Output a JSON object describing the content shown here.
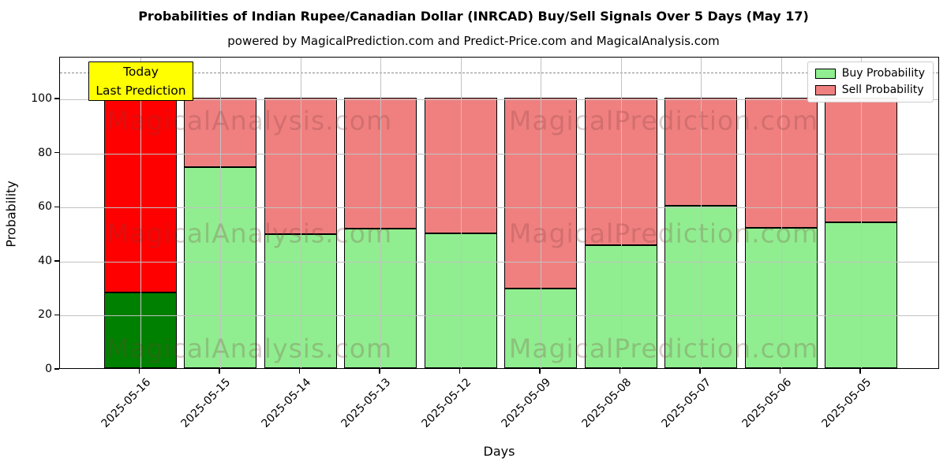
{
  "title": "Probabilities of Indian Rupee/Canadian Dollar (INRCAD) Buy/Sell Signals Over 5 Days (May 17)",
  "subtitle": "powered by MagicalPrediction.com and Predict-Price.com and MagicalAnalysis.com",
  "axes": {
    "xlabel": "Days",
    "ylabel": "Probability",
    "yticks": [
      0,
      20,
      40,
      60,
      80,
      100
    ],
    "ylim": [
      0,
      115.5
    ],
    "grid": true,
    "dashed_line_y": 110
  },
  "annotation": {
    "line1": "Today",
    "line2": "Last Prediction",
    "bg_color": "#ffff00"
  },
  "legend": {
    "position": "top-right",
    "items": [
      {
        "label": "Buy Probability",
        "color": "#90ee90"
      },
      {
        "label": "Sell Probability",
        "color": "#f08080"
      }
    ]
  },
  "watermarks": {
    "left_text": "MagicalAnalysis.com",
    "right_text": "MagicalPrediction.com"
  },
  "chart_data": {
    "type": "bar",
    "stacked": true,
    "title": "Probabilities of Indian Rupee/Canadian Dollar (INRCAD) Buy/Sell Signals Over 5 Days (May 17)",
    "xlabel": "Days",
    "ylabel": "Probability",
    "ylim": [
      0,
      115.5
    ],
    "categories": [
      "2025-05-16",
      "2025-05-15",
      "2025-05-14",
      "2025-05-13",
      "2025-05-12",
      "2025-05-09",
      "2025-05-08",
      "2025-05-07",
      "2025-05-06",
      "2025-05-05"
    ],
    "series": [
      {
        "name": "Buy Probability",
        "values": [
          28,
          74.5,
          49.5,
          51.5,
          50,
          29.5,
          45.5,
          60,
          52,
          54
        ],
        "colors": [
          "#008000",
          "#90ee90",
          "#90ee90",
          "#90ee90",
          "#90ee90",
          "#90ee90",
          "#90ee90",
          "#90ee90",
          "#90ee90",
          "#90ee90"
        ]
      },
      {
        "name": "Sell Probability",
        "values": [
          72,
          25.5,
          50.5,
          48.5,
          50,
          70.5,
          54.5,
          40,
          48,
          46
        ],
        "colors": [
          "#ff0000",
          "#f08080",
          "#f08080",
          "#f08080",
          "#f08080",
          "#f08080",
          "#f08080",
          "#f08080",
          "#f08080",
          "#f08080"
        ]
      }
    ],
    "highlight_index": 0,
    "bar_edge_color": "#000000"
  }
}
